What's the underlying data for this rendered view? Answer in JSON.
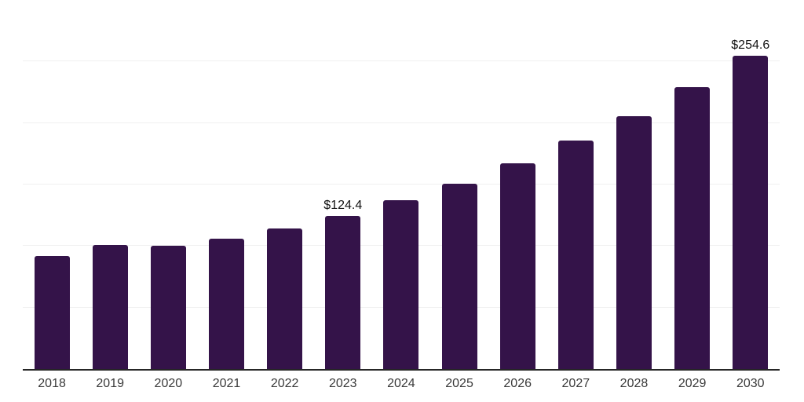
{
  "chart_data": {
    "type": "bar",
    "title": "",
    "xlabel": "",
    "ylabel": "",
    "categories": [
      "2018",
      "2019",
      "2020",
      "2021",
      "2022",
      "2023",
      "2024",
      "2025",
      "2026",
      "2027",
      "2028",
      "2029",
      "2030"
    ],
    "values": [
      91.7,
      100.8,
      100.1,
      105.8,
      114.2,
      124.4,
      137.1,
      150.6,
      167.0,
      185.6,
      205.6,
      228.9,
      254.6
    ],
    "data_labels": {
      "2023": "$124.4",
      "2030": "$254.6"
    },
    "ylim": [
      0,
      300
    ],
    "gridline_interval": 50,
    "grid": true,
    "legend": false,
    "y_tick_labels_visible": false,
    "currency_prefix": "$"
  },
  "colors": {
    "bar": "#341349",
    "axis_line": "#262626",
    "gridline": "#f0f0f0",
    "tick_label": "#3a3a3a",
    "data_label": "#111111",
    "background": "#ffffff"
  }
}
